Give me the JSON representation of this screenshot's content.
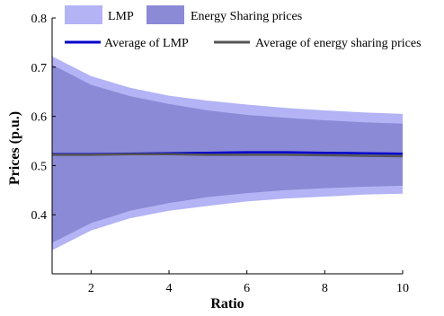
{
  "chart_data": {
    "type": "area",
    "xlabel": "Ratio",
    "ylabel": "Prices (p.u.)",
    "xlim": [
      1,
      10
    ],
    "ylim": [
      0.28,
      0.8
    ],
    "x_ticks": [
      2,
      4,
      6,
      8,
      10
    ],
    "y_ticks": [
      0.4,
      0.5,
      0.6,
      0.7,
      0.8
    ],
    "grid": false,
    "legend_position": "top",
    "x": [
      1,
      2,
      3,
      4,
      5,
      6,
      7,
      8,
      9,
      10
    ],
    "bands": [
      {
        "name": "LMP",
        "color": "#b3b3f5",
        "upper": [
          0.722,
          0.682,
          0.658,
          0.642,
          0.632,
          0.624,
          0.617,
          0.612,
          0.608,
          0.605
        ],
        "lower": [
          0.328,
          0.368,
          0.393,
          0.408,
          0.418,
          0.427,
          0.433,
          0.437,
          0.441,
          0.443
        ]
      },
      {
        "name": "Energy Sharing prices",
        "color": "#8a8ad6",
        "upper": [
          0.705,
          0.664,
          0.641,
          0.625,
          0.612,
          0.603,
          0.597,
          0.592,
          0.588,
          0.585
        ],
        "lower": [
          0.343,
          0.383,
          0.408,
          0.424,
          0.436,
          0.444,
          0.45,
          0.454,
          0.457,
          0.459
        ]
      }
    ],
    "series": [
      {
        "name": "Average of LMP",
        "color": "#0000cc",
        "values": [
          0.523,
          0.523,
          0.524,
          0.525,
          0.526,
          0.527,
          0.527,
          0.526,
          0.525,
          0.524
        ]
      },
      {
        "name": "Average of energy sharing prices",
        "color": "#555555",
        "values": [
          0.522,
          0.522,
          0.523,
          0.523,
          0.522,
          0.522,
          0.522,
          0.521,
          0.52,
          0.519
        ]
      }
    ]
  }
}
